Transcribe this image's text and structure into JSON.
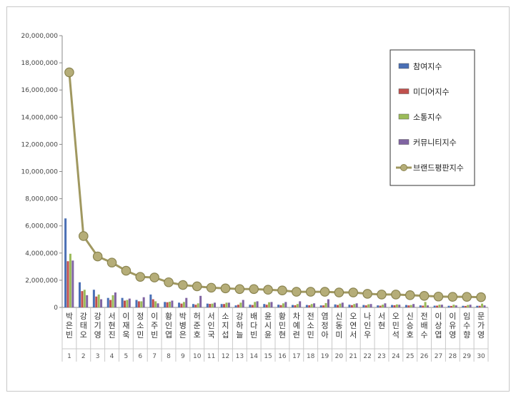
{
  "chart_data": {
    "type": "bar",
    "categories": [
      "박은빈",
      "강태오",
      "강기영",
      "서현진",
      "이재욱",
      "정소민",
      "이주빈",
      "황인엽",
      "박병은",
      "허준호",
      "서인국",
      "소지섭",
      "강하늘",
      "배다빈",
      "윤시윤",
      "황민현",
      "차예련",
      "전소민",
      "염정아",
      "신동미",
      "오연서",
      "나인우",
      "서현",
      "오민석",
      "신승호",
      "전배수",
      "이상엽",
      "이유영",
      "임수향",
      "문가영"
    ],
    "ranks": [
      "1",
      "2",
      "3",
      "4",
      "5",
      "6",
      "7",
      "8",
      "9",
      "10",
      "11",
      "12",
      "13",
      "14",
      "15",
      "16",
      "17",
      "18",
      "19",
      "20",
      "21",
      "22",
      "23",
      "24",
      "25",
      "26",
      "27",
      "28",
      "29",
      "30"
    ],
    "series": [
      {
        "name": "참여지수",
        "color": "#4a6fb5",
        "kind": "bar",
        "values": [
          6550000,
          1850000,
          1300000,
          700000,
          700000,
          550000,
          950000,
          400000,
          350000,
          250000,
          280000,
          250000,
          150000,
          200000,
          250000,
          200000,
          180000,
          180000,
          150000,
          220000,
          200000,
          180000,
          150000,
          180000,
          180000,
          150000,
          130000,
          120000,
          120000,
          120000
        ]
      },
      {
        "name": "미디어지수",
        "color": "#c0504d",
        "kind": "bar",
        "values": [
          3400000,
          1200000,
          800000,
          550000,
          500000,
          450000,
          600000,
          380000,
          280000,
          200000,
          260000,
          250000,
          200000,
          180000,
          200000,
          170000,
          160000,
          160000,
          150000,
          180000,
          170000,
          150000,
          130000,
          160000,
          150000,
          130000,
          130000,
          110000,
          110000,
          120000
        ]
      },
      {
        "name": "소통지수",
        "color": "#9bbb59",
        "kind": "bar",
        "values": [
          3950000,
          1300000,
          950000,
          900000,
          550000,
          450000,
          450000,
          420000,
          400000,
          300000,
          280000,
          350000,
          350000,
          400000,
          380000,
          300000,
          250000,
          250000,
          320000,
          280000,
          250000,
          230000,
          200000,
          220000,
          180000,
          400000,
          200000,
          200000,
          180000,
          280000
        ]
      },
      {
        "name": "커뮤니티지수",
        "color": "#8064a2",
        "kind": "bar",
        "values": [
          3450000,
          900000,
          600000,
          1100000,
          650000,
          750000,
          300000,
          500000,
          700000,
          850000,
          350000,
          350000,
          550000,
          450000,
          400000,
          400000,
          450000,
          300000,
          600000,
          350000,
          300000,
          250000,
          300000,
          200000,
          250000,
          150000,
          200000,
          150000,
          200000,
          150000
        ]
      },
      {
        "name": "브랜드평판지수",
        "color": "#a09860",
        "kind": "line",
        "values": [
          17300000,
          5250000,
          3750000,
          3300000,
          2700000,
          2250000,
          2200000,
          1850000,
          1650000,
          1550000,
          1450000,
          1400000,
          1350000,
          1350000,
          1300000,
          1250000,
          1150000,
          1150000,
          1150000,
          1100000,
          1100000,
          1000000,
          950000,
          950000,
          900000,
          850000,
          800000,
          780000,
          780000,
          750000
        ]
      }
    ],
    "yTicks": [
      "0",
      "2,000,000",
      "4,000,000",
      "6,000,000",
      "8,000,000",
      "10,000,000",
      "12,000,000",
      "14,000,000",
      "16,000,000",
      "18,000,000",
      "20,000,000"
    ],
    "ylim": [
      0,
      20000000
    ],
    "legend_position": "top-right",
    "grid": false
  }
}
